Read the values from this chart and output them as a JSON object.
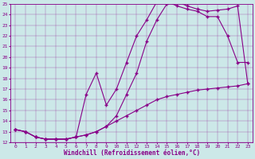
{
  "xlabel": "Windchill (Refroidissement éolien,°C)",
  "bg_color": "#cce8e8",
  "line_color": "#880088",
  "xlim": [
    -0.5,
    23.5
  ],
  "ylim": [
    12,
    25
  ],
  "xticks": [
    0,
    1,
    2,
    3,
    4,
    5,
    6,
    7,
    8,
    9,
    10,
    11,
    12,
    13,
    14,
    15,
    16,
    17,
    18,
    19,
    20,
    21,
    22,
    23
  ],
  "yticks": [
    12,
    13,
    14,
    15,
    16,
    17,
    18,
    19,
    20,
    21,
    22,
    23,
    24,
    25
  ],
  "curve1_x": [
    0,
    1,
    2,
    3,
    4,
    5,
    6,
    7,
    8,
    9,
    10,
    11,
    12,
    13,
    14,
    15,
    16,
    17,
    18,
    19,
    20,
    21,
    22,
    23
  ],
  "curve1_y": [
    13.2,
    13.0,
    12.5,
    12.3,
    12.3,
    12.3,
    12.5,
    12.7,
    13.0,
    13.5,
    14.5,
    16.5,
    18.5,
    21.5,
    23.5,
    25.0,
    25.2,
    24.8,
    24.5,
    24.3,
    24.4,
    24.5,
    24.8,
    17.5
  ],
  "curve2_x": [
    0,
    1,
    2,
    3,
    4,
    5,
    6,
    7,
    8,
    9,
    10,
    11,
    12,
    13,
    14,
    15,
    16,
    17,
    18,
    19,
    20,
    21,
    22,
    23
  ],
  "curve2_y": [
    13.2,
    13.0,
    12.5,
    12.3,
    12.3,
    12.3,
    12.5,
    16.5,
    18.5,
    15.5,
    17.0,
    19.5,
    22.0,
    23.5,
    25.2,
    25.2,
    24.8,
    24.5,
    24.3,
    23.8,
    23.8,
    22.0,
    19.5,
    19.5
  ],
  "curve3_x": [
    0,
    1,
    2,
    3,
    4,
    5,
    6,
    7,
    8,
    9,
    10,
    11,
    12,
    13,
    14,
    15,
    16,
    17,
    18,
    19,
    20,
    21,
    22,
    23
  ],
  "curve3_y": [
    13.2,
    13.0,
    12.5,
    12.3,
    12.3,
    12.3,
    12.5,
    12.7,
    13.0,
    13.5,
    14.0,
    14.5,
    15.0,
    15.5,
    16.0,
    16.3,
    16.5,
    16.7,
    16.9,
    17.0,
    17.1,
    17.2,
    17.3,
    17.5
  ]
}
